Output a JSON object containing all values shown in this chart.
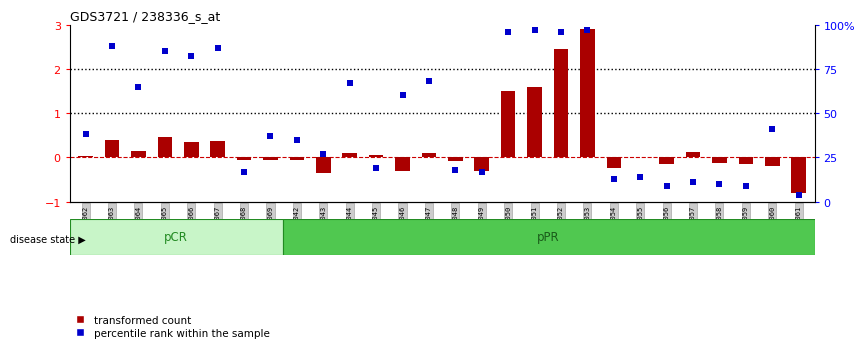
{
  "title": "GDS3721 / 238336_s_at",
  "samples": [
    "GSM559062",
    "GSM559063",
    "GSM559064",
    "GSM559065",
    "GSM559066",
    "GSM559067",
    "GSM559068",
    "GSM559069",
    "GSM559042",
    "GSM559043",
    "GSM559044",
    "GSM559045",
    "GSM559046",
    "GSM559047",
    "GSM559048",
    "GSM559049",
    "GSM559050",
    "GSM559051",
    "GSM559052",
    "GSM559053",
    "GSM559054",
    "GSM559055",
    "GSM559056",
    "GSM559057",
    "GSM559058",
    "GSM559059",
    "GSM559060",
    "GSM559061"
  ],
  "transformed_count": [
    0.02,
    0.4,
    0.15,
    0.45,
    0.35,
    0.38,
    -0.05,
    -0.05,
    -0.05,
    -0.35,
    0.1,
    0.05,
    -0.3,
    0.1,
    -0.08,
    -0.3,
    1.5,
    1.6,
    2.45,
    2.9,
    -0.25,
    0.0,
    -0.15,
    0.12,
    -0.12,
    -0.15,
    -0.2,
    -0.8
  ],
  "percentile_rank_pct": [
    38,
    88,
    65,
    85,
    82,
    87,
    17,
    37,
    35,
    27,
    67,
    19,
    60,
    68,
    18,
    17,
    96,
    97,
    96,
    97,
    13,
    14,
    9,
    11,
    10,
    9,
    41,
    4
  ],
  "group_labels": [
    "pCR",
    "pPR"
  ],
  "group_split": 8,
  "group_color_pcr": "#c8f5c8",
  "group_color_ppr": "#50c850",
  "bar_color": "#AA0000",
  "dot_color": "#0000CC",
  "ylim": [
    -1,
    3
  ],
  "y2lim": [
    0,
    100
  ],
  "yticks_left": [
    -1,
    0,
    1,
    2,
    3
  ],
  "yticks_right": [
    0,
    25,
    50,
    75,
    100
  ],
  "hlines_dotted": [
    1.0,
    2.0
  ],
  "background_color": "#ffffff"
}
